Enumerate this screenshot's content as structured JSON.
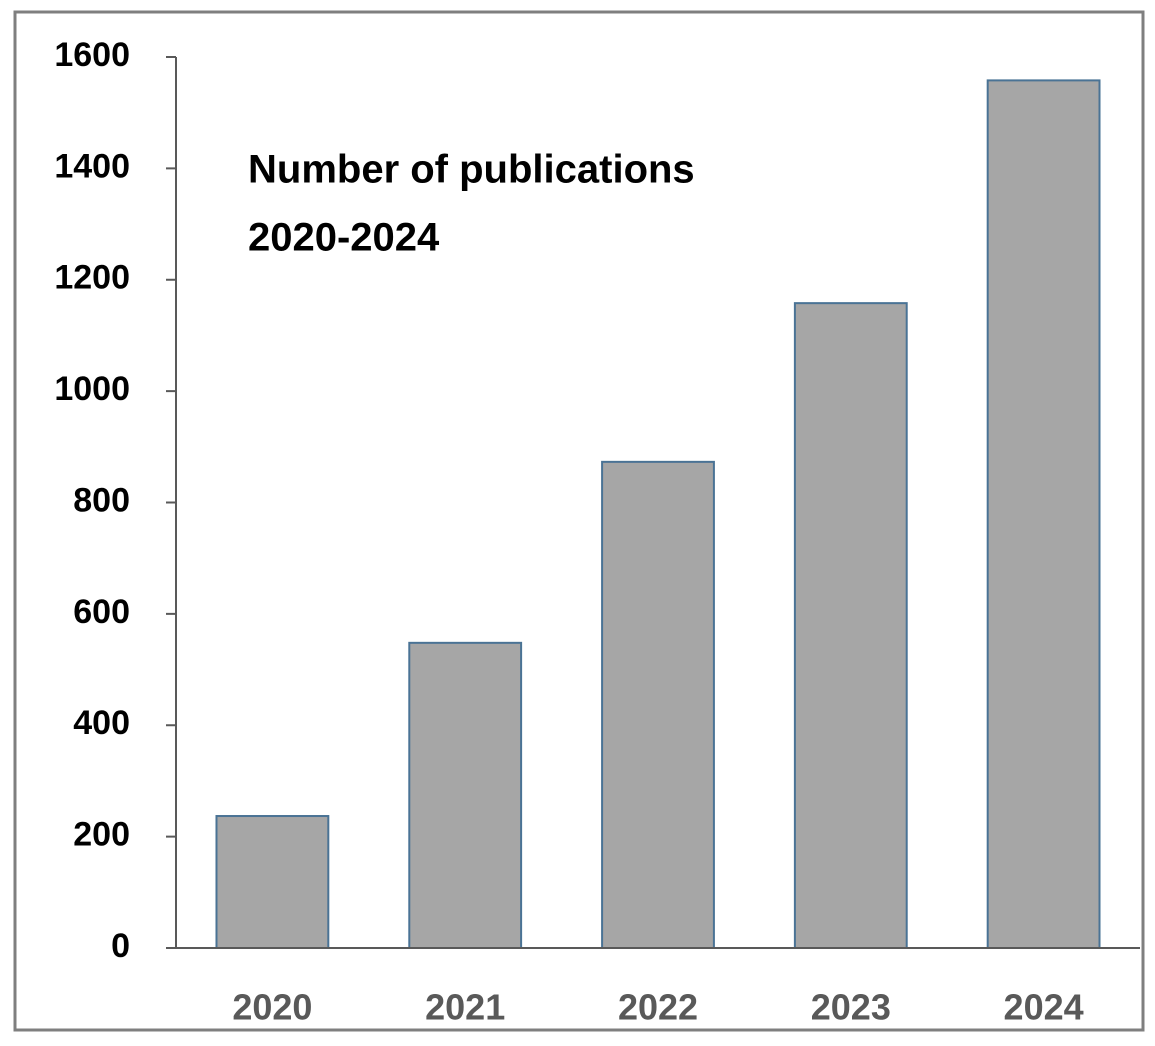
{
  "chart_data": {
    "type": "bar",
    "title": [
      "Number of publications",
      "2020-2024"
    ],
    "categories": [
      "2020",
      "2021",
      "2022",
      "2023",
      "2024"
    ],
    "values": [
      237,
      548,
      873,
      1158,
      1558
    ],
    "color": "#a6a6a6",
    "ylim": [
      0,
      1600
    ],
    "yticks": [
      0,
      200,
      400,
      600,
      800,
      1000,
      1200,
      1400,
      1600
    ],
    "grid": false
  }
}
